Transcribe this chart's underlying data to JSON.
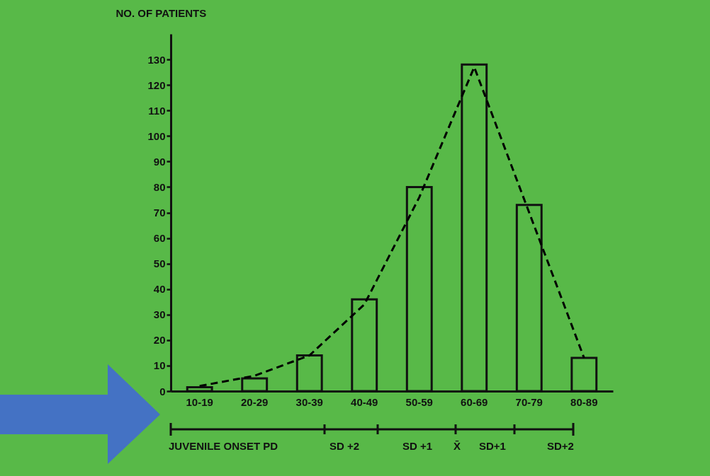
{
  "chart_data": {
    "type": "bar",
    "ylabel": "NO. OF PATIENTS",
    "categories": [
      "10-19",
      "20-29",
      "30-39",
      "40-49",
      "50-59",
      "60-69",
      "70-79",
      "80-89"
    ],
    "series": [
      {
        "color": "#58b948",
        "values": [
          1.5,
          5,
          14,
          36,
          80,
          128,
          73,
          13
        ]
      },
      {
        "type": "line",
        "color": "#000000",
        "line_style": "dashed",
        "marker": "none",
        "values": [
          2,
          6,
          14,
          34,
          76,
          127,
          70,
          13
        ]
      }
    ],
    "ylim": [
      0,
      140
    ],
    "yticks": [
      0,
      10,
      20,
      30,
      40,
      50,
      60,
      70,
      80,
      90,
      100,
      110,
      120,
      130
    ],
    "annotations": [
      "JUVENILE ONSET PD",
      "SD +2",
      "SD +1",
      "X̄",
      "SD+1",
      "SD+2"
    ]
  }
}
